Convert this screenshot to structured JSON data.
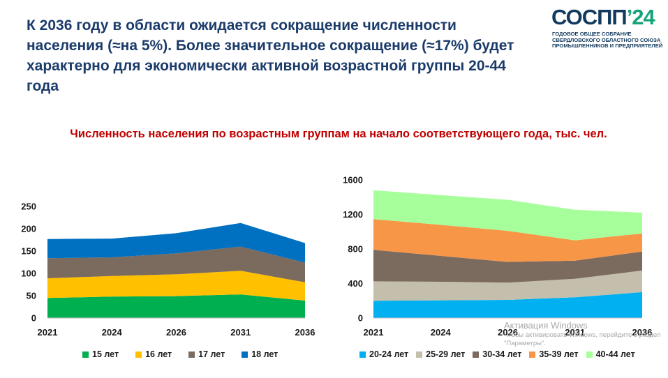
{
  "slide": {
    "headline": "К 2036 году в области ожидается сокращение численности населения (≈на 5%). Более значительное сокращение (≈17%) будет характерно для экономически активной возрастной группы 20-44 года",
    "subtitle": "Численность населения по возрастным группам на начало соответствующего года, тыс. чел."
  },
  "logo": {
    "word_main": "СОСПП",
    "word_accent": "’24",
    "subtitle": "ГОДОВОЕ ОБЩЕЕ СОБРАНИЕ СВЕРДЛОВСКОГО ОБЛАСТНОГО СОЮЗА ПРОМЫШЛЕННИКОВ И ПРЕДПРИЯТЕЛЕЙ"
  },
  "watermark": {
    "title": "Активация Windows",
    "subtitle": "Чтобы активировать Windows, перейдите в раздел \"Параметры\"."
  },
  "chart_data": [
    {
      "type": "area",
      "stacked": true,
      "categories": [
        "2021",
        "2024",
        "2026",
        "2031",
        "2036"
      ],
      "series": [
        {
          "name": "15 лет",
          "color": "#00b050",
          "values": [
            45,
            48,
            49,
            53,
            39
          ]
        },
        {
          "name": "16 лет",
          "color": "#ffc000",
          "values": [
            44,
            46,
            49,
            53,
            41
          ]
        },
        {
          "name": "17 лет",
          "color": "#7b6a5e",
          "values": [
            45,
            42,
            47,
            54,
            44
          ]
        },
        {
          "name": "18 лет",
          "color": "#0070c0",
          "values": [
            43,
            42,
            45,
            53,
            44
          ]
        }
      ],
      "ylim": [
        0,
        250
      ],
      "yticks": [
        0,
        50,
        100,
        150,
        200,
        250
      ],
      "legend": "bottom",
      "grid": false
    },
    {
      "type": "area",
      "stacked": true,
      "categories": [
        "2021",
        "2024",
        "2026",
        "2031",
        "2036"
      ],
      "series": [
        {
          "name": "20-24 лет",
          "color": "#00b0f0",
          "values": [
            200,
            205,
            210,
            240,
            300
          ]
        },
        {
          "name": "25-29 лет",
          "color": "#c4bfad",
          "values": [
            225,
            215,
            200,
            215,
            250
          ]
        },
        {
          "name": "30-34 лет",
          "color": "#7b6a5e",
          "values": [
            365,
            300,
            240,
            210,
            220
          ]
        },
        {
          "name": "35-39 лет",
          "color": "#f79646",
          "values": [
            355,
            360,
            360,
            235,
            210
          ]
        },
        {
          "name": "40-44 лет",
          "color": "#a6ff9a",
          "values": [
            335,
            345,
            360,
            355,
            240
          ]
        }
      ],
      "ylim": [
        0,
        1600
      ],
      "yticks": [
        0,
        400,
        800,
        1200,
        1600
      ],
      "legend": "bottom",
      "grid": false
    }
  ]
}
